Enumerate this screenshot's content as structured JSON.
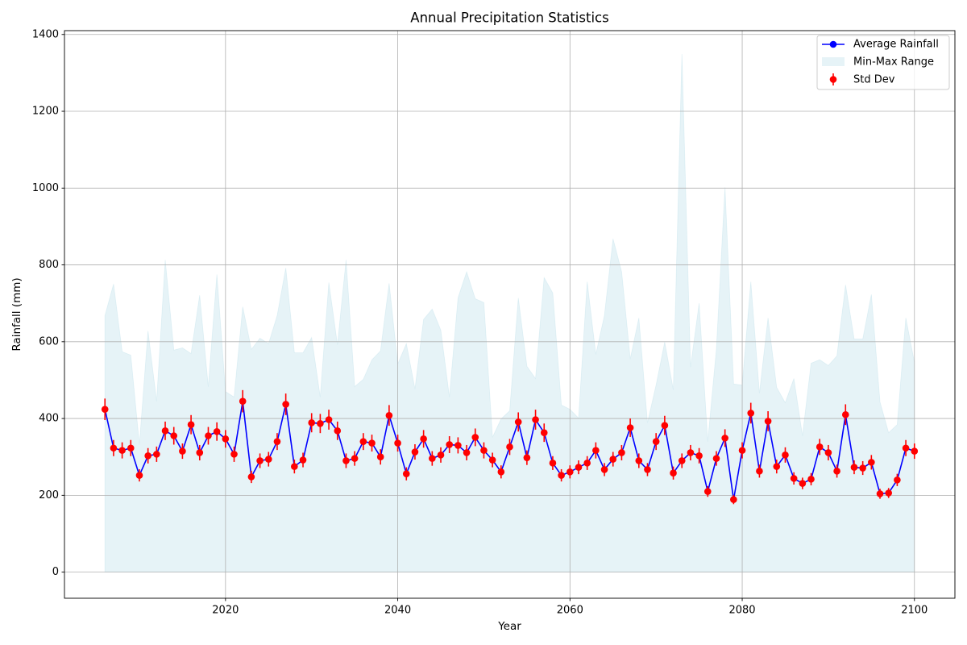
{
  "chart_data": {
    "type": "line",
    "title": "Annual Precipitation Statistics",
    "xlabel": "Year",
    "ylabel": "Rainfall (mm)",
    "xlim": [
      2001.3,
      2104.7
    ],
    "ylim": [
      -68,
      1410
    ],
    "xticks": [
      2020,
      2040,
      2060,
      2080,
      2100
    ],
    "yticks": [
      0,
      200,
      400,
      600,
      800,
      1000,
      1200,
      1400
    ],
    "grid": true,
    "legend_position": "top-right",
    "x": [
      2006,
      2007,
      2008,
      2009,
      2010,
      2011,
      2012,
      2013,
      2014,
      2015,
      2016,
      2017,
      2018,
      2019,
      2020,
      2021,
      2022,
      2023,
      2024,
      2025,
      2026,
      2027,
      2028,
      2029,
      2030,
      2031,
      2032,
      2033,
      2034,
      2035,
      2036,
      2037,
      2038,
      2039,
      2040,
      2041,
      2042,
      2043,
      2044,
      2045,
      2046,
      2047,
      2048,
      2049,
      2050,
      2051,
      2052,
      2053,
      2054,
      2055,
      2056,
      2057,
      2058,
      2059,
      2060,
      2061,
      2062,
      2063,
      2064,
      2065,
      2066,
      2067,
      2068,
      2069,
      2070,
      2071,
      2072,
      2073,
      2074,
      2075,
      2076,
      2077,
      2078,
      2079,
      2080,
      2081,
      2082,
      2083,
      2084,
      2085,
      2086,
      2087,
      2088,
      2089,
      2090,
      2091,
      2092,
      2093,
      2094,
      2095,
      2096,
      2097,
      2098,
      2099,
      2100
    ],
    "series": [
      {
        "name": "Average Rainfall",
        "kind": "line",
        "color": "#0000ff",
        "values": [
          424,
          323,
          317,
          323,
          252,
          303,
          307,
          368,
          355,
          315,
          384,
          311,
          355,
          366,
          347,
          307,
          445,
          248,
          290,
          294,
          340,
          437,
          275,
          292,
          389,
          387,
          397,
          368,
          290,
          296,
          340,
          336,
          300,
          408,
          336,
          256,
          313,
          347,
          296,
          305,
          332,
          330,
          311,
          351,
          317,
          292,
          261,
          326,
          391,
          298,
          397,
          363,
          284,
          252,
          261,
          273,
          284,
          317,
          267,
          294,
          311,
          376,
          290,
          267,
          340,
          382,
          258,
          290,
          311,
          303,
          210,
          296,
          349,
          189,
          317,
          414,
          263,
          393,
          275,
          305,
          244,
          231,
          242,
          326,
          311,
          263,
          410,
          273,
          271,
          286,
          204,
          206,
          240,
          323,
          315
        ]
      },
      {
        "name": "Min-Max Range",
        "kind": "fill",
        "color": "#add8e6",
        "min": [
          0,
          0,
          0,
          0,
          0,
          0,
          0,
          0,
          0,
          0,
          0,
          0,
          0,
          0,
          0,
          0,
          0,
          0,
          0,
          0,
          0,
          0,
          0,
          0,
          0,
          0,
          0,
          0,
          0,
          0,
          0,
          0,
          0,
          0,
          0,
          0,
          0,
          0,
          0,
          0,
          0,
          0,
          0,
          0,
          0,
          0,
          0,
          0,
          0,
          0,
          0,
          0,
          0,
          0,
          0,
          0,
          0,
          0,
          0,
          0,
          0,
          0,
          0,
          0,
          0,
          0,
          0,
          0,
          0,
          0,
          0,
          0,
          0,
          0,
          0,
          0,
          0,
          0,
          0,
          0,
          0,
          0,
          0,
          0,
          0,
          0,
          0,
          0,
          0,
          0,
          0,
          0,
          0,
          0,
          0
        ],
        "max": [
          668,
          750,
          574,
          565,
          332,
          628,
          445,
          813,
          578,
          584,
          569,
          721,
          483,
          775,
          470,
          456,
          691,
          580,
          609,
          595,
          668,
          792,
          571,
          571,
          611,
          456,
          754,
          592,
          813,
          483,
          502,
          553,
          576,
          752,
          542,
          595,
          477,
          658,
          685,
          630,
          456,
          714,
          782,
          712,
          702,
          351,
          399,
          420,
          714,
          536,
          504,
          767,
          727,
          435,
          424,
          401,
          756,
          567,
          668,
          868,
          782,
          555,
          662,
          389,
          487,
          599,
          475,
          1349,
          534,
          700,
          340,
          580,
          1002,
          490,
          487,
          756,
          466,
          662,
          481,
          441,
          504,
          355,
          544,
          553,
          538,
          563,
          748,
          607,
          607,
          723,
          443,
          363,
          384,
          662,
          546
        ]
      },
      {
        "name": "Std Dev",
        "kind": "errorbar",
        "color": "#ff0000",
        "values": [
          28,
          21,
          21,
          21,
          16,
          20,
          20,
          24,
          23,
          20,
          25,
          20,
          23,
          24,
          23,
          20,
          29,
          16,
          19,
          19,
          22,
          28,
          18,
          19,
          25,
          25,
          26,
          24,
          19,
          19,
          22,
          22,
          20,
          27,
          22,
          17,
          20,
          23,
          19,
          20,
          22,
          21,
          20,
          23,
          21,
          19,
          17,
          21,
          25,
          19,
          26,
          24,
          18,
          16,
          17,
          18,
          18,
          21,
          17,
          19,
          20,
          24,
          19,
          17,
          22,
          25,
          17,
          19,
          20,
          20,
          14,
          19,
          23,
          12,
          21,
          27,
          17,
          26,
          18,
          20,
          16,
          15,
          16,
          21,
          20,
          17,
          27,
          18,
          18,
          19,
          13,
          13,
          16,
          21,
          20
        ]
      }
    ]
  }
}
